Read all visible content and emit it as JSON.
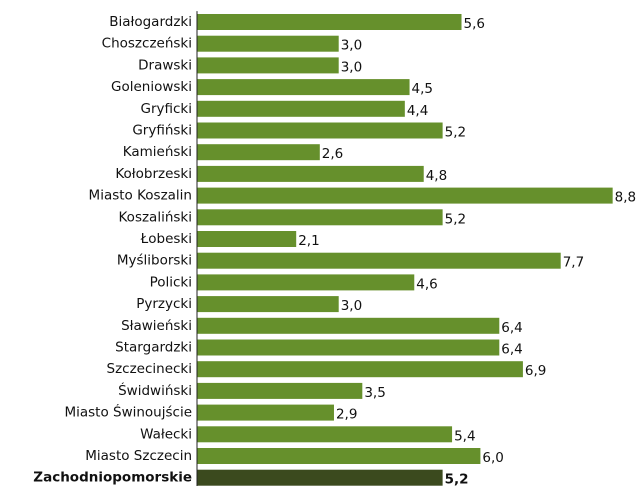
{
  "chart_data": {
    "type": "hbar",
    "categories": [
      "Białogardzki",
      "Choszczeński",
      "Drawski",
      "Goleniowski",
      "Gryficki",
      "Gryfiński",
      "Kamieński",
      "Kołobrzeski",
      "Miasto Koszalin",
      "Koszaliński",
      "Łobeski",
      "Myśliborski",
      "Policki",
      "Pyrzycki",
      "Sławieński",
      "Stargardzki",
      "Szczecinecki",
      "Świdwiński",
      "Miasto Świnoujście",
      "Wałecki",
      "Miasto Szczecin",
      "Zachodniopomorskie"
    ],
    "values": [
      5.6,
      3.0,
      3.0,
      4.5,
      4.4,
      5.2,
      2.6,
      4.8,
      8.8,
      5.2,
      2.1,
      7.7,
      4.6,
      3.0,
      6.4,
      6.4,
      6.9,
      3.5,
      2.9,
      5.4,
      6.0,
      5.2
    ],
    "value_labels": [
      "5,6",
      "3,0",
      "3,0",
      "4,5",
      "4,4",
      "5,2",
      "2,6",
      "4,8",
      "8,8",
      "5,2",
      "2,1",
      "7,7",
      "4,6",
      "3,0",
      "6,4",
      "6,4",
      "6,9",
      "3,5",
      "2,9",
      "5,4",
      "6,0",
      "5,2"
    ],
    "colors": [
      "#66902c",
      "#66902c",
      "#66902c",
      "#66902c",
      "#66902c",
      "#66902c",
      "#66902c",
      "#66902c",
      "#66902c",
      "#66902c",
      "#66902c",
      "#66902c",
      "#66902c",
      "#66902c",
      "#66902c",
      "#66902c",
      "#66902c",
      "#66902c",
      "#66902c",
      "#66902c",
      "#66902c",
      "#3b4a1e"
    ],
    "xlim": [
      0,
      9.4
    ]
  }
}
